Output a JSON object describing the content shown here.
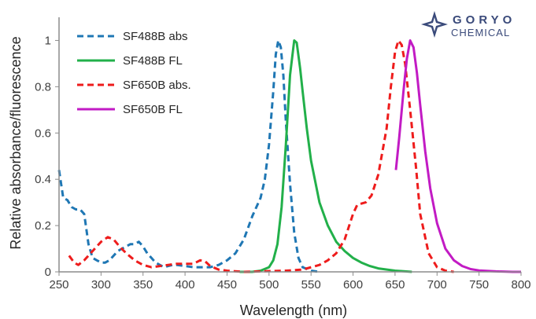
{
  "logo": {
    "line1": "GORYO",
    "line2": "CHEMICAL"
  },
  "chart_data": {
    "type": "line",
    "xlabel": "Wavelength (nm)",
    "ylabel": "Relative absorbance/fluorescence",
    "xlim": [
      250,
      800
    ],
    "ylim": [
      0,
      1.1
    ],
    "xticks": [
      250,
      300,
      350,
      400,
      450,
      500,
      550,
      600,
      650,
      700,
      750,
      800
    ],
    "yticks": [
      0,
      0.2,
      0.4,
      0.6,
      0.8,
      1
    ],
    "grid": false,
    "legend_position": "top-left",
    "series": [
      {
        "name": "SF488B abs",
        "color": "#1f77b4",
        "dash": "dashed",
        "points": [
          [
            250,
            0.44
          ],
          [
            255,
            0.32
          ],
          [
            260,
            0.31
          ],
          [
            265,
            0.28
          ],
          [
            270,
            0.27
          ],
          [
            275,
            0.27
          ],
          [
            280,
            0.25
          ],
          [
            285,
            0.12
          ],
          [
            290,
            0.06
          ],
          [
            295,
            0.05
          ],
          [
            300,
            0.04
          ],
          [
            305,
            0.04
          ],
          [
            310,
            0.05
          ],
          [
            315,
            0.07
          ],
          [
            320,
            0.09
          ],
          [
            325,
            0.1
          ],
          [
            330,
            0.11
          ],
          [
            335,
            0.12
          ],
          [
            340,
            0.12
          ],
          [
            345,
            0.13
          ],
          [
            350,
            0.11
          ],
          [
            355,
            0.08
          ],
          [
            360,
            0.06
          ],
          [
            365,
            0.04
          ],
          [
            370,
            0.03
          ],
          [
            375,
            0.02
          ],
          [
            380,
            0.025
          ],
          [
            385,
            0.03
          ],
          [
            390,
            0.03
          ],
          [
            400,
            0.025
          ],
          [
            410,
            0.02
          ],
          [
            420,
            0.02
          ],
          [
            430,
            0.02
          ],
          [
            440,
            0.03
          ],
          [
            450,
            0.05
          ],
          [
            460,
            0.08
          ],
          [
            470,
            0.14
          ],
          [
            480,
            0.24
          ],
          [
            490,
            0.32
          ],
          [
            495,
            0.4
          ],
          [
            500,
            0.55
          ],
          [
            505,
            0.78
          ],
          [
            508,
            0.94
          ],
          [
            511,
            1.0
          ],
          [
            514,
            0.97
          ],
          [
            517,
            0.85
          ],
          [
            520,
            0.65
          ],
          [
            525,
            0.38
          ],
          [
            530,
            0.17
          ],
          [
            535,
            0.06
          ],
          [
            540,
            0.02
          ],
          [
            550,
            0.005
          ],
          [
            560,
            0
          ]
        ]
      },
      {
        "name": "SF488B FL",
        "color": "#22b04a",
        "dash": "solid",
        "points": [
          [
            465,
            0
          ],
          [
            480,
            0
          ],
          [
            490,
            0.005
          ],
          [
            500,
            0.02
          ],
          [
            505,
            0.05
          ],
          [
            510,
            0.12
          ],
          [
            515,
            0.28
          ],
          [
            520,
            0.55
          ],
          [
            525,
            0.85
          ],
          [
            530,
            1.0
          ],
          [
            533,
            0.99
          ],
          [
            537,
            0.88
          ],
          [
            540,
            0.78
          ],
          [
            545,
            0.62
          ],
          [
            550,
            0.48
          ],
          [
            560,
            0.3
          ],
          [
            570,
            0.2
          ],
          [
            580,
            0.13
          ],
          [
            590,
            0.09
          ],
          [
            600,
            0.06
          ],
          [
            610,
            0.04
          ],
          [
            620,
            0.025
          ],
          [
            630,
            0.015
          ],
          [
            650,
            0.005
          ],
          [
            670,
            0
          ]
        ]
      },
      {
        "name": "SF650B abs.",
        "color": "#ee1c1c",
        "dash": "dashed",
        "points": [
          [
            262,
            0.07
          ],
          [
            268,
            0.04
          ],
          [
            273,
            0.03
          ],
          [
            280,
            0.05
          ],
          [
            290,
            0.09
          ],
          [
            300,
            0.13
          ],
          [
            308,
            0.15
          ],
          [
            315,
            0.14
          ],
          [
            322,
            0.11
          ],
          [
            330,
            0.08
          ],
          [
            340,
            0.05
          ],
          [
            350,
            0.03
          ],
          [
            360,
            0.02
          ],
          [
            370,
            0.025
          ],
          [
            380,
            0.03
          ],
          [
            390,
            0.035
          ],
          [
            400,
            0.035
          ],
          [
            410,
            0.035
          ],
          [
            418,
            0.05
          ],
          [
            424,
            0.045
          ],
          [
            430,
            0.025
          ],
          [
            440,
            0.01
          ],
          [
            450,
            0.005
          ],
          [
            470,
            0
          ],
          [
            520,
            0.005
          ],
          [
            540,
            0.01
          ],
          [
            560,
            0.03
          ],
          [
            570,
            0.05
          ],
          [
            580,
            0.08
          ],
          [
            590,
            0.14
          ],
          [
            600,
            0.25
          ],
          [
            605,
            0.29
          ],
          [
            615,
            0.3
          ],
          [
            622,
            0.33
          ],
          [
            630,
            0.42
          ],
          [
            640,
            0.62
          ],
          [
            645,
            0.8
          ],
          [
            650,
            0.95
          ],
          [
            654,
            1.0
          ],
          [
            658,
            0.98
          ],
          [
            662,
            0.9
          ],
          [
            668,
            0.7
          ],
          [
            675,
            0.45
          ],
          [
            680,
            0.25
          ],
          [
            690,
            0.08
          ],
          [
            700,
            0.02
          ],
          [
            710,
            0.005
          ],
          [
            720,
            0
          ]
        ]
      },
      {
        "name": "SF650B FL",
        "color": "#c21bc4",
        "dash": "solid",
        "points": [
          [
            651,
            0.44
          ],
          [
            655,
            0.58
          ],
          [
            660,
            0.78
          ],
          [
            664,
            0.92
          ],
          [
            668,
            1.0
          ],
          [
            672,
            0.97
          ],
          [
            676,
            0.86
          ],
          [
            680,
            0.72
          ],
          [
            686,
            0.52
          ],
          [
            692,
            0.36
          ],
          [
            700,
            0.21
          ],
          [
            710,
            0.1
          ],
          [
            720,
            0.05
          ],
          [
            730,
            0.025
          ],
          [
            740,
            0.012
          ],
          [
            750,
            0.006
          ],
          [
            770,
            0.002
          ],
          [
            790,
            0
          ],
          [
            800,
            0
          ]
        ]
      }
    ]
  }
}
